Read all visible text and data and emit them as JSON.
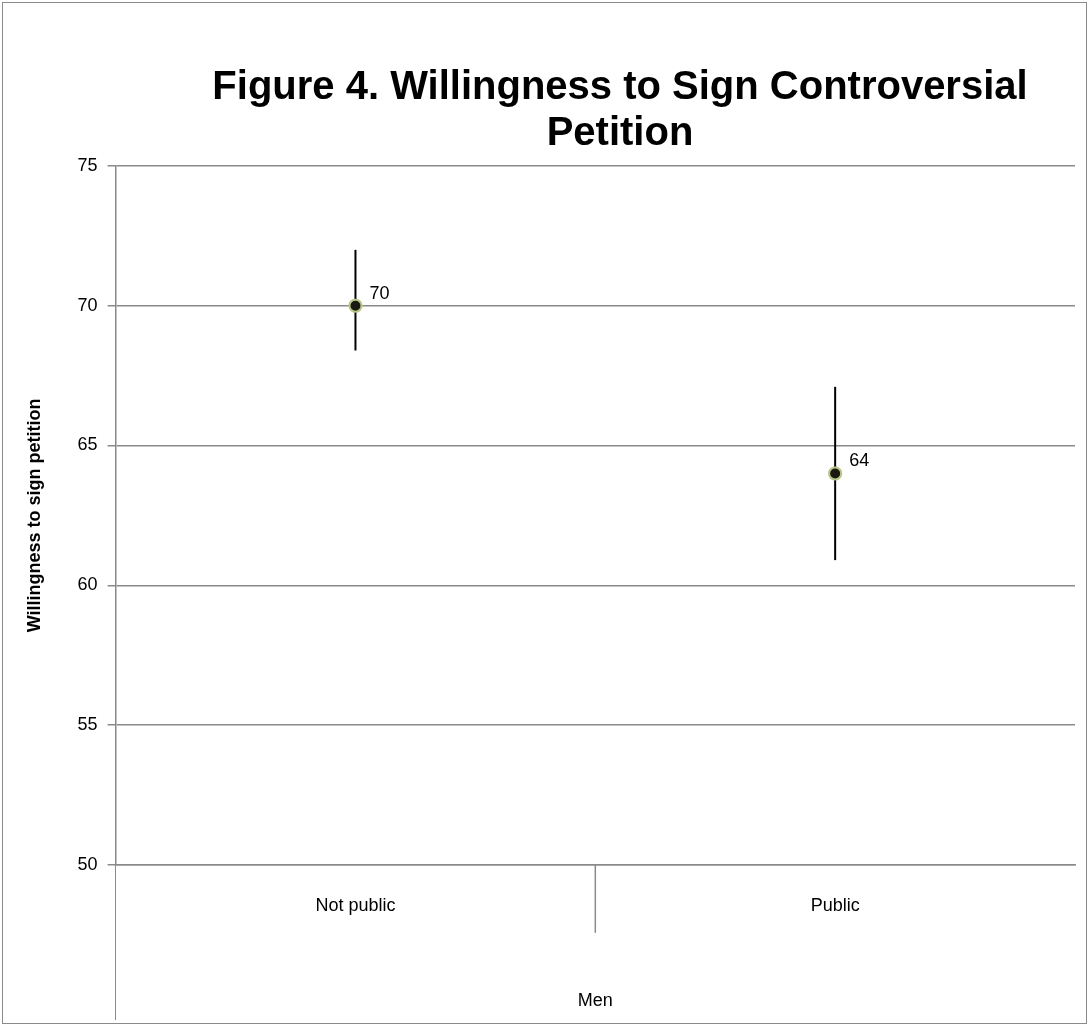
{
  "chart_data": {
    "type": "scatter",
    "title": "Figure 4. Willingness to Sign Controversial Petition",
    "xlabel": "Men",
    "ylabel": "Willingness to sign petition",
    "categories": [
      "Not public",
      "Public"
    ],
    "values": [
      70,
      64
    ],
    "color": "#1a1a10",
    "errors": [
      [
        68.4,
        72
      ],
      [
        60.9,
        67.1
      ]
    ],
    "ylim": [
      50,
      75
    ],
    "yticks": [
      50,
      55,
      60,
      65,
      70,
      75
    ],
    "grid": "y",
    "legend": false,
    "marker": "circle",
    "data_labels": true
  }
}
